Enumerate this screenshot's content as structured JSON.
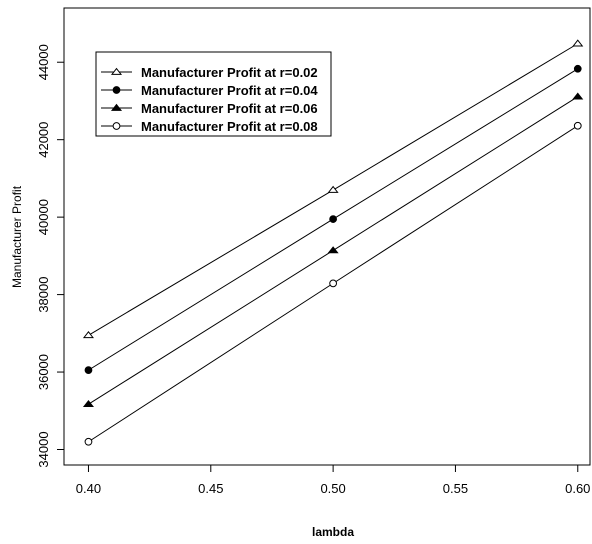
{
  "chart_data": {
    "type": "line",
    "title": "",
    "xlabel": "lambda",
    "ylabel": "Manufacturer Profit",
    "x": [
      0.4,
      0.5,
      0.6
    ],
    "xlim": [
      0.39,
      0.605
    ],
    "ylim": [
      33600,
      45400
    ],
    "xticks": [
      "0.40",
      "0.45",
      "0.50",
      "0.55",
      "0.60"
    ],
    "yticks": [
      "34000",
      "36000",
      "38000",
      "40000",
      "42000",
      "44000"
    ],
    "grid": false,
    "legend_position": "top-left",
    "series": [
      {
        "name": "Manufacturer Profit at r=0.02",
        "marker": "open-triangle",
        "values": [
          36950,
          40700,
          44480
        ]
      },
      {
        "name": "Manufacturer Profit at r=0.04",
        "marker": "filled-circle",
        "values": [
          36050,
          39950,
          43830
        ]
      },
      {
        "name": "Manufacturer Profit at r=0.06",
        "marker": "filled-triangle",
        "values": [
          35170,
          39140,
          43110
        ]
      },
      {
        "name": "Manufacturer Profit at r=0.08",
        "marker": "open-circle",
        "values": [
          34200,
          38290,
          42360
        ]
      }
    ],
    "colors": {
      "line": "#000000",
      "frame": "#000000",
      "background": "#ffffff"
    }
  }
}
